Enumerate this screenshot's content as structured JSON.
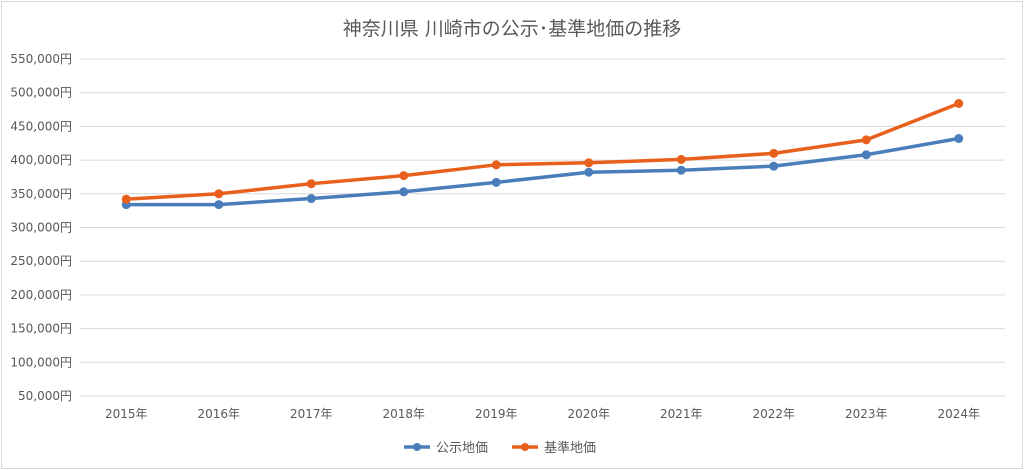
{
  "chart_data": {
    "type": "line",
    "title": "神奈川県 川崎市の公示･基準地価の推移",
    "categories": [
      "2015年",
      "2016年",
      "2017年",
      "2018年",
      "2019年",
      "2020年",
      "2021年",
      "2022年",
      "2023年",
      "2024年"
    ],
    "series": [
      {
        "name": "公示地価",
        "color": "#4a7ebb",
        "values": [
          334000,
          334000,
          343000,
          353000,
          367000,
          382000,
          385000,
          391000,
          408000,
          432000
        ]
      },
      {
        "name": "基準地価",
        "color": "#e8601c",
        "values": [
          342000,
          350000,
          365000,
          377000,
          393000,
          396000,
          401000,
          410000,
          430000,
          484000
        ]
      }
    ],
    "ylim": [
      50000,
      550000
    ],
    "yticks": [
      550000,
      500000,
      450000,
      400000,
      350000,
      300000,
      250000,
      200000,
      150000,
      100000,
      50000
    ],
    "ytick_labels": [
      "550,000円",
      "500,000円",
      "450,000円",
      "400,000円",
      "350,000円",
      "300,000円",
      "250,000円",
      "200,000円",
      "150,000円",
      "100,000円",
      "50,000円"
    ],
    "grid": true,
    "legend_position": "bottom"
  }
}
